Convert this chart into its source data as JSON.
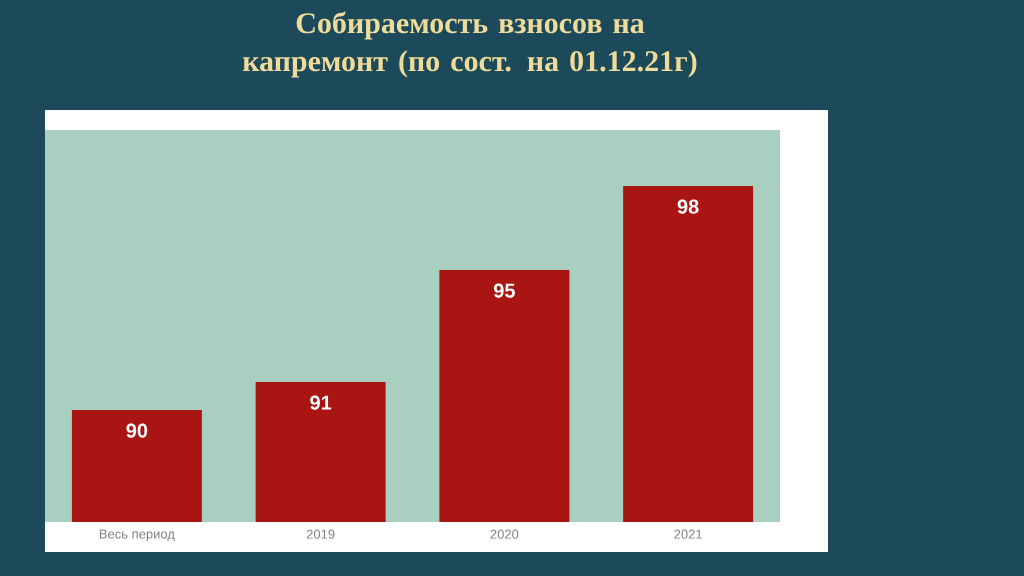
{
  "chart_data": {
    "type": "bar",
    "title": "Собираемость взносов на капремонт (по сост. на 01.12.21г)",
    "categories": [
      "Весь период",
      "2019",
      "2020",
      "2021"
    ],
    "values": [
      90,
      91,
      95,
      98
    ],
    "color": "#a81513",
    "ylim": [
      86,
      100
    ],
    "data_labels": true
  }
}
